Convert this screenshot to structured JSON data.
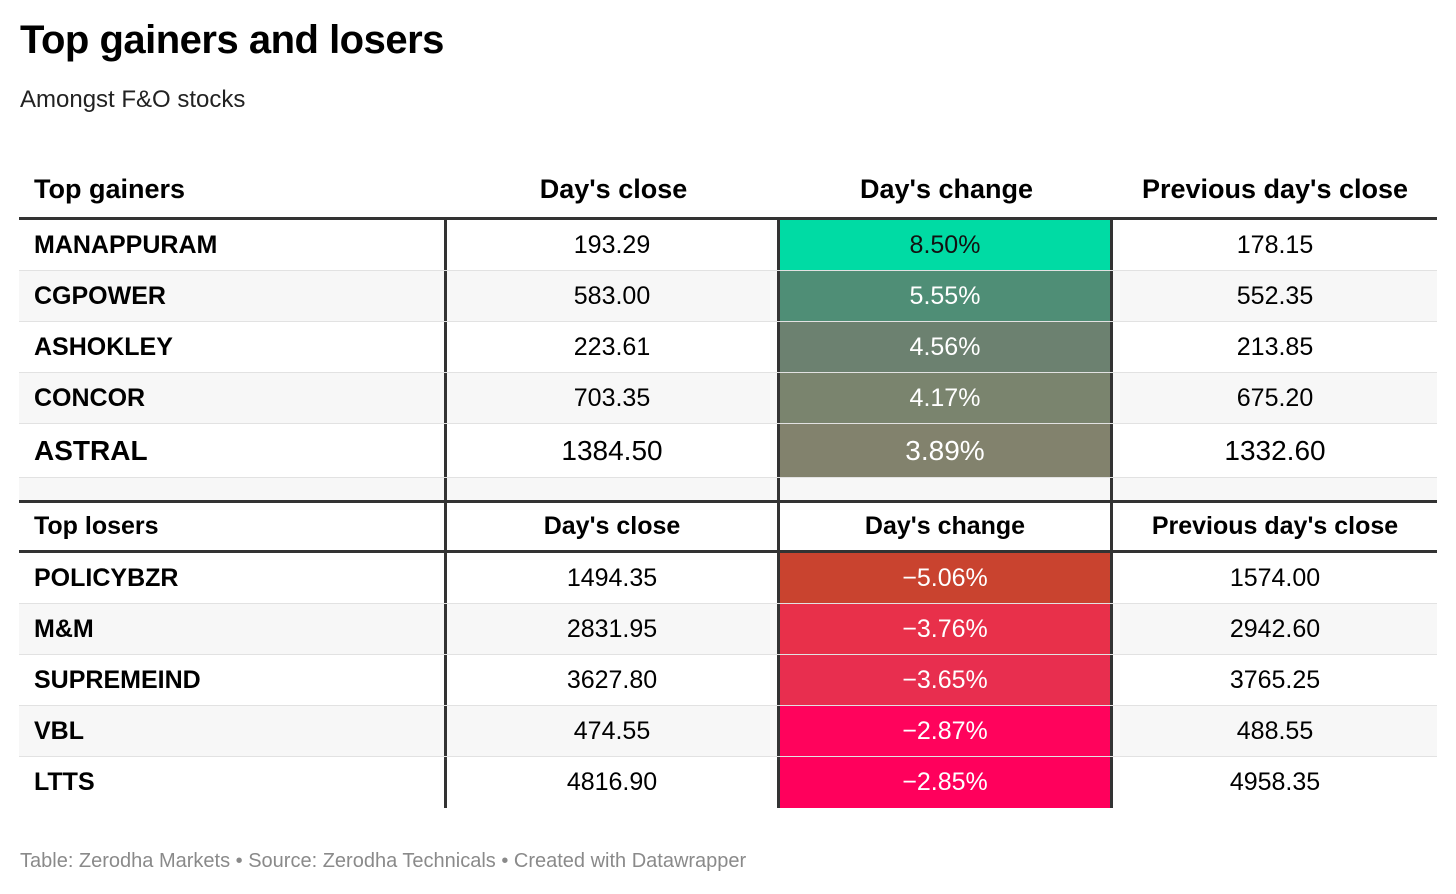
{
  "title": "Top gainers and losers",
  "subtitle": "Amongst F&O stocks",
  "footer": "Table: Zerodha Markets • Source: Zerodha Technicals • Created with Datawrapper",
  "chart_data": {
    "type": "table",
    "gainers": {
      "headers": [
        "Top gainers",
        "Day's close",
        "Day's change",
        "Previous day's close"
      ],
      "rows": [
        {
          "name": "MANAPPURAM",
          "close": "193.29",
          "change": "8.50%",
          "prev": "178.15",
          "color": "#00dba4"
        },
        {
          "name": "CGPOWER",
          "close": "583.00",
          "change": "5.55%",
          "prev": "552.35",
          "color": "#4f8e76"
        },
        {
          "name": "ASHOKLEY",
          "close": "223.61",
          "change": "4.56%",
          "prev": "213.85",
          "color": "#6c8170"
        },
        {
          "name": "CONCOR",
          "close": "703.35",
          "change": "4.17%",
          "prev": "675.20",
          "color": "#7a846e"
        },
        {
          "name": "ASTRAL",
          "close": "1384.50",
          "change": "3.89%",
          "prev": "1332.60",
          "color": "#82826d"
        }
      ]
    },
    "losers": {
      "headers": [
        "Top losers",
        "Day's close",
        "Day's change",
        "Previous day's close"
      ],
      "rows": [
        {
          "name": "POLICYBZR",
          "close": "1494.35",
          "change": "−5.06%",
          "prev": "1574.00",
          "color": "#c9432f"
        },
        {
          "name": "M&M",
          "close": "2831.95",
          "change": "−3.76%",
          "prev": "2942.60",
          "color": "#e8304a"
        },
        {
          "name": "SUPREMEIND",
          "close": "3627.80",
          "change": "−3.65%",
          "prev": "3765.25",
          "color": "#e82e4f"
        },
        {
          "name": "VBL",
          "close": "474.55",
          "change": "−2.87%",
          "prev": "488.55",
          "color": "#ff035c"
        },
        {
          "name": "LTTS",
          "close": "4816.90",
          "change": "−2.85%",
          "prev": "4958.35",
          "color": "#ff005c"
        }
      ]
    }
  }
}
